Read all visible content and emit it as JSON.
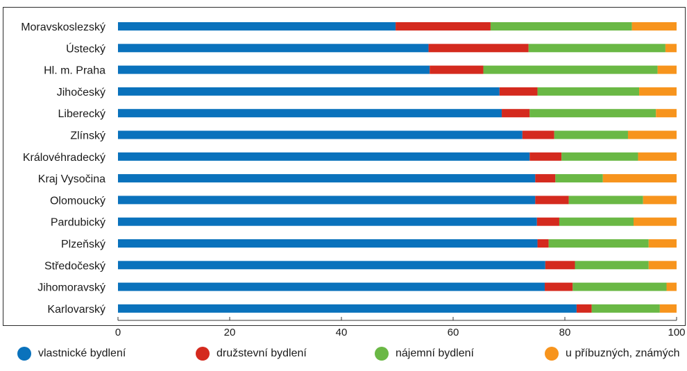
{
  "chart_data": {
    "type": "bar",
    "orientation": "horizontal",
    "stacked": true,
    "title": "",
    "xlabel": "",
    "ylabel": "",
    "xlim": [
      0,
      100
    ],
    "x_ticks": [
      0,
      20,
      40,
      60,
      80,
      100
    ],
    "grid": false,
    "legend_position": "bottom",
    "categories": [
      "Moravskoslezský",
      "Ústecký",
      "Hl. m. Praha",
      "Jihočeský",
      "Liberecký",
      "Zlínský",
      "Královéhradecký",
      "Kraj Vysočina",
      "Olomoucký",
      "Pardubický",
      "Plzeňský",
      "Středočeský",
      "Jihomoravský",
      "Karlovarský"
    ],
    "series": [
      {
        "name": "vlastnické bydlení",
        "color": "#0a72bc",
        "values": [
          49.7,
          55.6,
          55.8,
          68.3,
          68.7,
          72.4,
          73.7,
          74.7,
          74.7,
          75.0,
          75.1,
          76.5,
          76.4,
          82.1
        ]
      },
      {
        "name": "družstevní bydlení",
        "color": "#d42a1e",
        "values": [
          17.0,
          17.9,
          9.6,
          6.8,
          5.0,
          5.7,
          5.7,
          3.6,
          6.0,
          4.0,
          2.0,
          5.3,
          5.0,
          2.7
        ]
      },
      {
        "name": "nájemní bydlení",
        "color": "#6ab845",
        "values": [
          25.3,
          24.5,
          31.2,
          18.2,
          22.6,
          13.2,
          13.7,
          8.5,
          13.3,
          13.3,
          17.9,
          13.2,
          16.8,
          12.2
        ]
      },
      {
        "name": "u příbuzných, známých",
        "color": "#f7941d",
        "values": [
          8.0,
          2.0,
          3.4,
          6.7,
          3.7,
          8.7,
          6.9,
          13.2,
          6.0,
          7.7,
          5.0,
          5.0,
          1.8,
          3.0
        ]
      }
    ]
  }
}
